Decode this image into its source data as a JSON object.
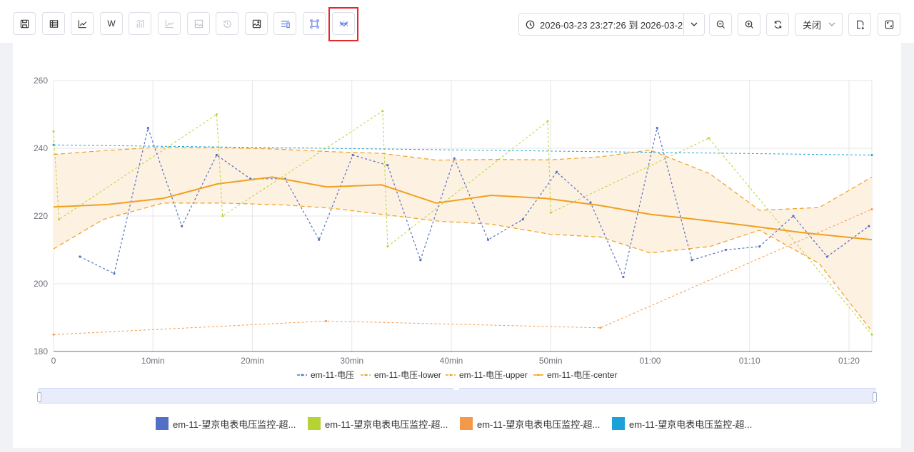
{
  "toolbar": {
    "buttons": [
      {
        "icon": "save-chart-icon",
        "state": "normal"
      },
      {
        "icon": "table-icon",
        "state": "normal"
      },
      {
        "icon": "line-chart-icon",
        "state": "normal"
      },
      {
        "icon": "w-text-icon",
        "label": "W",
        "state": "normal"
      },
      {
        "icon": "bar-chart-icon",
        "state": "disabled"
      },
      {
        "icon": "area-chart-icon",
        "state": "disabled"
      },
      {
        "icon": "image-frame-icon",
        "state": "disabled"
      },
      {
        "icon": "history-icon",
        "state": "disabled"
      },
      {
        "icon": "image-edit-icon",
        "state": "normal"
      },
      {
        "icon": "list-settings-icon",
        "state": "active"
      },
      {
        "icon": "scale-frame-icon",
        "state": "active"
      },
      {
        "icon": "band-chart-icon",
        "state": "selected"
      }
    ],
    "time_range": "2026-03-23 23:27:26 到 2026-03-2",
    "select_value": "关闭",
    "colors": {
      "active": "#5b74e6",
      "highlight": "#e5262d"
    }
  },
  "chart_data": {
    "type": "line",
    "x": [
      0,
      2.65,
      6.1,
      9.5,
      12.9,
      16.4,
      17,
      19.8,
      23.3,
      26.7,
      27.4,
      30.1,
      33.1,
      33.6,
      36.9,
      40.3,
      43.7,
      47.2,
      50,
      50.6,
      54,
      55,
      57.3,
      60.7,
      64.2,
      67.6,
      71,
      74.4,
      77.8,
      82.3
    ],
    "xlim": [
      0,
      82.3
    ],
    "ylim": [
      180,
      260
    ],
    "yticks": [
      180,
      200,
      220,
      240,
      260
    ],
    "xtick_labels": [
      {
        "x": 0,
        "label": "0"
      },
      {
        "x": 10,
        "label": "10min"
      },
      {
        "x": 20,
        "label": "20min"
      },
      {
        "x": 30,
        "label": "30min"
      },
      {
        "x": 40,
        "label": "40min"
      },
      {
        "x": 50,
        "label": "50min"
      },
      {
        "x": 60,
        "label": "01:00"
      },
      {
        "x": 70,
        "label": "01:10"
      },
      {
        "x": 80,
        "label": "01:20"
      }
    ],
    "grid": true,
    "legend_position": "bottom",
    "series": [
      {
        "name": "em-11-电压",
        "color": "#5470c6",
        "style": "dashed-dotted",
        "points": [
          [
            2.65,
            208
          ],
          [
            6.1,
            203
          ],
          [
            9.5,
            246
          ],
          [
            12.9,
            217
          ],
          [
            16.4,
            238
          ],
          [
            19.8,
            231
          ],
          [
            23.3,
            231
          ],
          [
            26.7,
            213
          ],
          [
            30.1,
            238
          ],
          [
            33.6,
            235
          ],
          [
            36.9,
            207
          ],
          [
            40.3,
            237
          ],
          [
            43.7,
            213
          ],
          [
            47.2,
            219
          ],
          [
            50.6,
            233
          ],
          [
            54,
            224
          ],
          [
            57.3,
            202
          ],
          [
            60.7,
            246
          ],
          [
            64.2,
            207
          ],
          [
            67.6,
            210
          ],
          [
            71,
            211
          ],
          [
            74.4,
            220
          ],
          [
            77.8,
            208
          ],
          [
            82,
            217
          ]
        ]
      },
      {
        "name": "em-11-电压-lower",
        "color": "#f0a020",
        "style": "dashed",
        "points": [
          [
            0,
            210.3
          ],
          [
            5,
            219
          ],
          [
            11,
            223.8
          ],
          [
            17,
            223.8
          ],
          [
            23,
            223.3
          ],
          [
            28,
            222.3
          ],
          [
            33,
            220.5
          ],
          [
            39,
            218.4
          ],
          [
            44,
            217.6
          ],
          [
            50,
            214.6
          ],
          [
            55,
            213.8
          ],
          [
            60,
            209.1
          ],
          [
            66,
            211
          ],
          [
            71,
            215.8
          ],
          [
            77,
            206
          ],
          [
            82.3,
            186
          ]
        ]
      },
      {
        "name": "em-11-电压-upper",
        "color": "#f0a020",
        "style": "dashed",
        "points": [
          [
            0,
            238.2
          ],
          [
            5,
            239.3
          ],
          [
            10,
            240.2
          ],
          [
            16,
            240.2
          ],
          [
            22,
            239.8
          ],
          [
            28,
            239
          ],
          [
            33,
            238.5
          ],
          [
            38.5,
            236.5
          ],
          [
            44,
            236.7
          ],
          [
            50,
            236.6
          ],
          [
            55,
            237.5
          ],
          [
            60,
            239.5
          ],
          [
            66,
            232.5
          ],
          [
            71,
            221.7
          ],
          [
            77,
            222.5
          ],
          [
            82.3,
            231.5
          ]
        ]
      },
      {
        "name": "em-11-电压-center",
        "color": "#f0a020",
        "style": "solid",
        "points": [
          [
            0,
            222.7
          ],
          [
            5.5,
            223.4
          ],
          [
            11,
            225.2
          ],
          [
            16.5,
            229.5
          ],
          [
            22,
            231.5
          ],
          [
            27.5,
            228.6
          ],
          [
            33,
            229.2
          ],
          [
            38.5,
            223.8
          ],
          [
            44,
            226.1
          ],
          [
            49.5,
            225.2
          ],
          [
            55,
            223.1
          ],
          [
            60,
            220.5
          ],
          [
            65,
            218.9
          ],
          [
            70,
            217.1
          ],
          [
            75,
            215.2
          ],
          [
            82.3,
            213
          ]
        ]
      }
    ],
    "extra_series": [
      {
        "legend_label": "em-11-望京电表电压监控-超...",
        "color": "#5470c6",
        "points": []
      },
      {
        "legend_label": "em-11-望京电表电压监控-超...",
        "color": "#b5d334",
        "style": "dashed-dotted",
        "points": [
          [
            0,
            245
          ],
          [
            0.55,
            219
          ],
          [
            16.4,
            250
          ],
          [
            17,
            220
          ],
          [
            33.1,
            251
          ],
          [
            33.6,
            211
          ],
          [
            49.7,
            248
          ],
          [
            50,
            221
          ],
          [
            65.9,
            243
          ],
          [
            82.3,
            185
          ]
        ]
      },
      {
        "legend_label": "em-11-望京电表电压监控-超...",
        "color": "#f4984a",
        "style": "dashed-dotted",
        "points": [
          [
            0,
            185
          ],
          [
            27.4,
            189
          ],
          [
            55,
            187
          ],
          [
            82.3,
            222
          ]
        ]
      },
      {
        "legend_label": "em-11-望京电表电压监控-超...",
        "color": "#1ba2d6",
        "style": "dashed-dotted",
        "points": [
          [
            0,
            241
          ],
          [
            82.3,
            238
          ]
        ]
      }
    ]
  }
}
